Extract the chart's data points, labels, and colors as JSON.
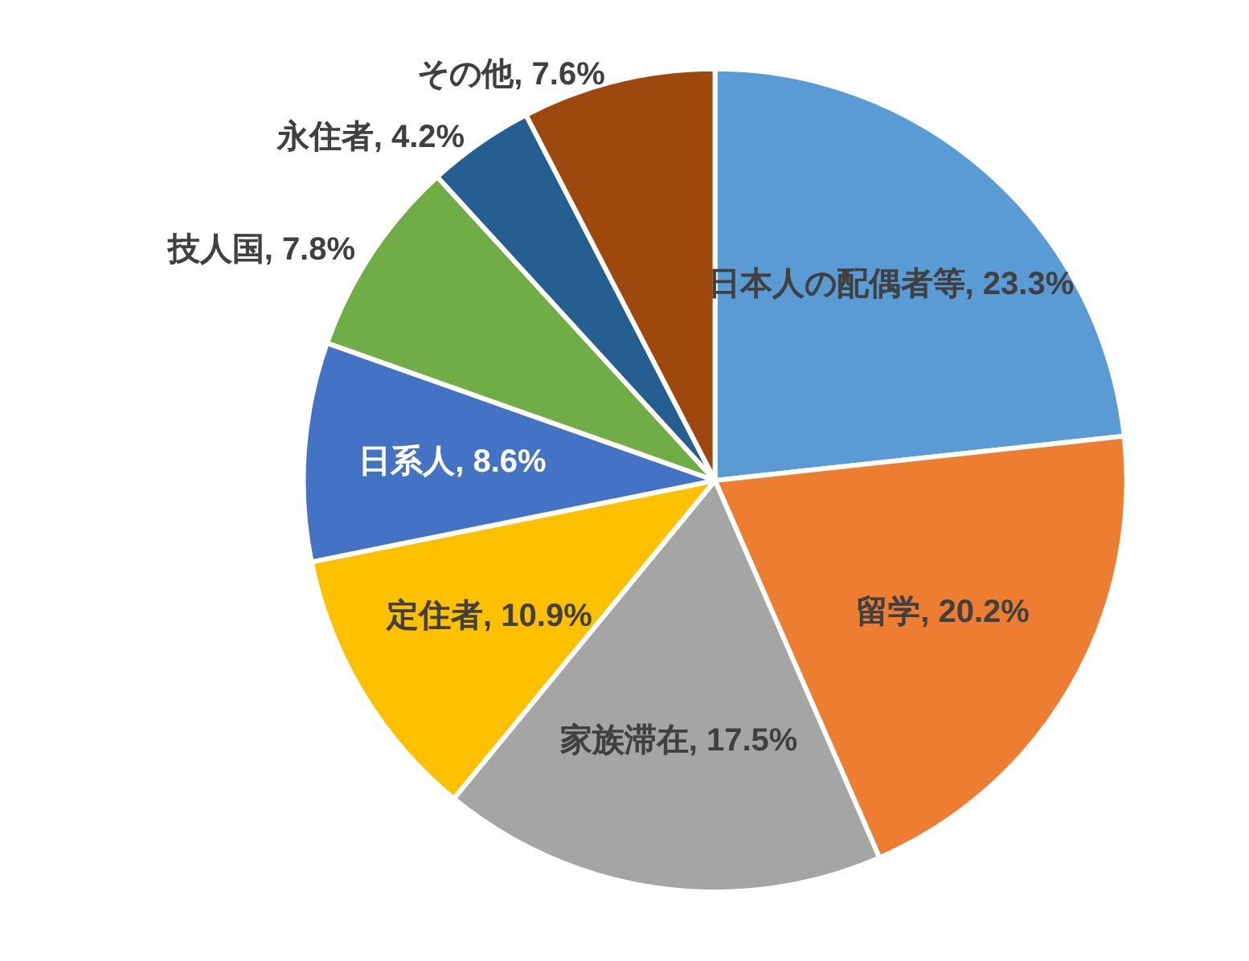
{
  "chart_data": {
    "type": "pie",
    "categories": [
      "日本人の配偶者等",
      "留学",
      "家族滞在",
      "定住者",
      "日系人",
      "技人国",
      "永住者",
      "その他"
    ],
    "values": [
      23.3,
      20.2,
      17.5,
      10.9,
      8.6,
      7.8,
      4.2,
      7.6
    ],
    "colors": [
      "#5b9bd5",
      "#ed7d31",
      "#a5a5a5",
      "#ffc000",
      "#4472c4",
      "#70ad47",
      "#255e91",
      "#9e480e"
    ],
    "value_labels": [
      "23.3%",
      "20.2%",
      "17.5%",
      "10.9%",
      "8.6%",
      "7.8%",
      "4.2%",
      "7.6%"
    ],
    "legend": false
  }
}
